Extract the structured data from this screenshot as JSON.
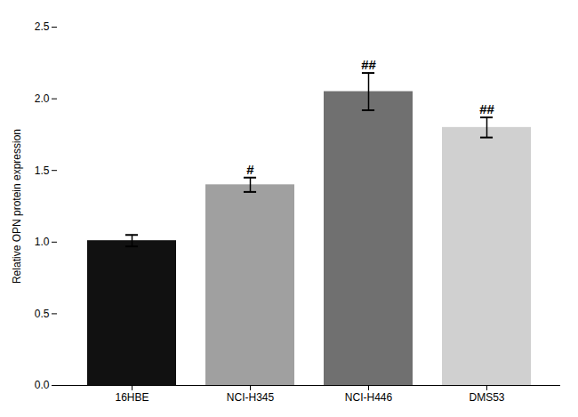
{
  "chart_data": {
    "type": "bar",
    "categories": [
      "16HBE",
      "NCI-H345",
      "NCI-H446",
      "DMS53"
    ],
    "values": [
      1.01,
      1.4,
      2.05,
      1.8
    ],
    "errors": [
      0.04,
      0.05,
      0.13,
      0.07
    ],
    "colors": [
      "#111111",
      "#a0a0a0",
      "#707070",
      "#d0d0d0"
    ],
    "annotations": [
      null,
      "#",
      "##",
      "##"
    ],
    "ylabel": "Relative OPN protein expression",
    "ylim": [
      0,
      2.5
    ],
    "yticks": [
      {
        "value": 0.0,
        "label": "0.0"
      },
      0.5,
      {
        "value": 1.0,
        "label": "1.0"
      },
      1.5,
      {
        "value": 2.0,
        "label": "2.0"
      },
      2.5
    ]
  }
}
